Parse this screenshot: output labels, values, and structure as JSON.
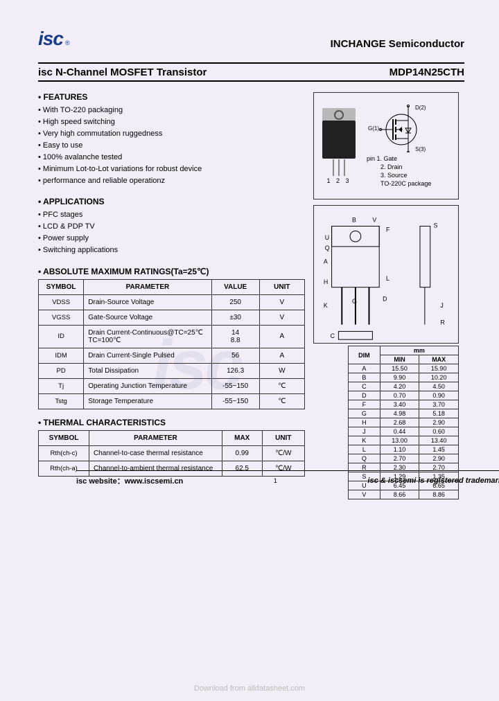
{
  "header": {
    "logo_text": "isc",
    "logo_reg": "®",
    "brand": "INCHANGE Semiconductor"
  },
  "title": {
    "main": "isc N-Channel MOSFET Transistor",
    "part": "MDP14N25CTH"
  },
  "features": {
    "heading": "FEATURES",
    "items": [
      "With TO-220 packaging",
      "High speed switching",
      "Very high commutation ruggedness",
      "Easy to use",
      "100% avalanche tested",
      "Minimum Lot-to-Lot variations for robust device",
      "performance and reliable operationz"
    ]
  },
  "applications": {
    "heading": "APPLICATIONS",
    "items": [
      "PFC stages",
      "LCD & PDP TV",
      "Power supply",
      "Switching applications"
    ]
  },
  "ratings": {
    "heading": "ABSOLUTE MAXIMUM RATINGS(Ta=25℃)",
    "cols": [
      "SYMBOL",
      "PARAMETER",
      "VALUE",
      "UNIT"
    ],
    "rows": [
      {
        "sym": "VDSS",
        "param": "Drain-Source Voltage",
        "val": "250",
        "unit": "V"
      },
      {
        "sym": "VGSS",
        "param": "Gate-Source Voltage",
        "val": "±30",
        "unit": "V"
      },
      {
        "sym": "ID",
        "param": "Drain Current-Continuous@TC=25℃\n                          TC=100℃",
        "val": "14\n8.8",
        "unit": "A"
      },
      {
        "sym": "IDM",
        "param": "Drain Current-Single Pulsed",
        "val": "56",
        "unit": "A"
      },
      {
        "sym": "PD",
        "param": "Total Dissipation",
        "val": "126.3",
        "unit": "W"
      },
      {
        "sym": "Tj",
        "param": "Operating Junction Temperature",
        "val": "-55~150",
        "unit": "℃"
      },
      {
        "sym": "Tstg",
        "param": "Storage Temperature",
        "val": "-55~150",
        "unit": "℃"
      }
    ]
  },
  "thermal": {
    "heading": "THERMAL CHARACTERISTICS",
    "cols": [
      "SYMBOL",
      "PARAMETER",
      "MAX",
      "UNIT"
    ],
    "rows": [
      {
        "sym": "Rth(ch-c)",
        "param": "Channel-to-case thermal resistance",
        "val": "0.99",
        "unit": "℃/W"
      },
      {
        "sym": "Rth(ch-a)",
        "param": "Channel-to-ambient thermal resistance",
        "val": "62.5",
        "unit": "℃/W"
      }
    ]
  },
  "pkg": {
    "pins_lbl": "1 2 3",
    "d_lbl": "D(2)",
    "g_lbl": "G(1)",
    "s_lbl": "S(3)",
    "pin_desc": [
      "pin 1. Gate",
      "2. Drain",
      "3. Source",
      "TO-220C package"
    ]
  },
  "dims": {
    "head_mm": "mm",
    "cols": [
      "DIM",
      "MIN",
      "MAX"
    ],
    "rows": [
      [
        "A",
        "15.50",
        "15.90"
      ],
      [
        "B",
        "9.90",
        "10.20"
      ],
      [
        "C",
        "4.20",
        "4.50"
      ],
      [
        "D",
        "0.70",
        "0.90"
      ],
      [
        "F",
        "3.40",
        "3.70"
      ],
      [
        "G",
        "4.98",
        "5.18"
      ],
      [
        "H",
        "2.68",
        "2.90"
      ],
      [
        "J",
        "0.44",
        "0.60"
      ],
      [
        "K",
        "13.00",
        "13.40"
      ],
      [
        "L",
        "1.10",
        "1.45"
      ],
      [
        "Q",
        "2.70",
        "2.90"
      ],
      [
        "R",
        "2.30",
        "2.70"
      ],
      [
        "S",
        "1.29",
        "1.35"
      ],
      [
        "U",
        "6.45",
        "6.65"
      ],
      [
        "V",
        "8.66",
        "8.86"
      ]
    ]
  },
  "footer": {
    "left_a": "isc website：",
    "left_b": "www.iscsemi.cn",
    "page": "1",
    "right": "isc & iscsemi is registered trademark"
  },
  "download": "Download from alldatasheet.com",
  "watermark": "isc"
}
